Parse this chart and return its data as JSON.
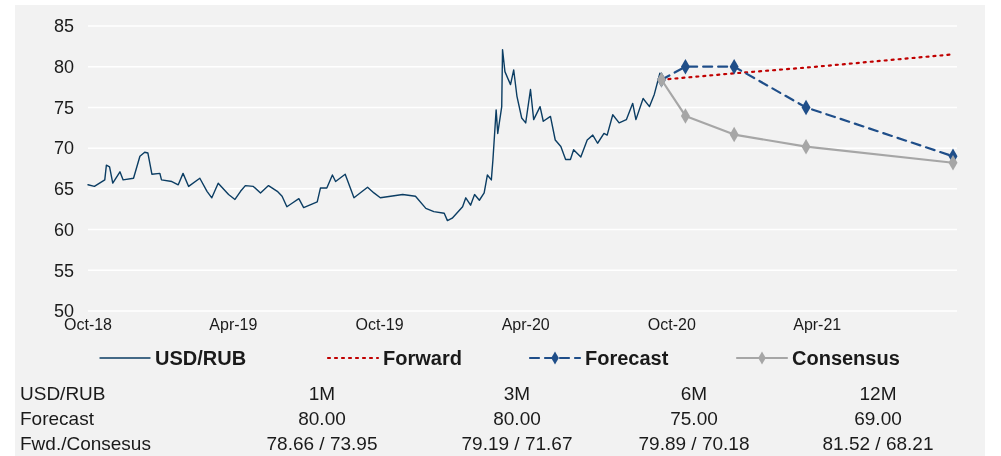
{
  "chart_data": {
    "type": "line",
    "xlim": [
      "2018-10-01",
      "2021-09-23"
    ],
    "xticks": [
      {
        "value": "2018-10-01",
        "label": "Oct-18"
      },
      {
        "value": "2019-04-01",
        "label": "Apr-19"
      },
      {
        "value": "2019-10-01",
        "label": "Oct-19"
      },
      {
        "value": "2020-04-01",
        "label": "Apr-20"
      },
      {
        "value": "2020-10-01",
        "label": "Oct-20"
      },
      {
        "value": "2021-04-01",
        "label": "Apr-21"
      }
    ],
    "ylim": [
      50,
      85
    ],
    "yticks": [
      50,
      55,
      60,
      65,
      70,
      75,
      80,
      85
    ],
    "grid": "y",
    "legend": "bottom",
    "series": [
      {
        "name": "USD/RUB",
        "color": "#0b3d63",
        "line_style": "solid",
        "marker": "none",
        "x": [
          "2018-10-01",
          "2018-10-09",
          "2018-10-22",
          "2018-10-24",
          "2018-10-28",
          "2018-11-01",
          "2018-11-10",
          "2018-11-14",
          "2018-11-27",
          "2018-12-05",
          "2018-12-11",
          "2018-12-15",
          "2018-12-20",
          "2018-12-30",
          "2019-01-01",
          "2019-01-14",
          "2019-01-22",
          "2019-01-28",
          "2019-02-04",
          "2019-02-18",
          "2019-02-27",
          "2019-03-05",
          "2019-03-13",
          "2019-03-26",
          "2019-04-03",
          "2019-04-10",
          "2019-04-16",
          "2019-04-26",
          "2019-05-05",
          "2019-05-15",
          "2019-05-26",
          "2019-06-01",
          "2019-06-07",
          "2019-06-13",
          "2019-06-22",
          "2019-06-28",
          "2019-07-15",
          "2019-07-19",
          "2019-07-27",
          "2019-08-03",
          "2019-08-07",
          "2019-08-19",
          "2019-08-30",
          "2019-09-16",
          "2019-09-24",
          "2019-10-02",
          "2019-10-30",
          "2019-11-15",
          "2019-11-28",
          "2019-12-08",
          "2019-12-21",
          "2019-12-25",
          "2019-12-31",
          "2020-01-13",
          "2020-01-17",
          "2020-01-23",
          "2020-01-28",
          "2020-02-03",
          "2020-02-09",
          "2020-02-13",
          "2020-02-18",
          "2020-02-20",
          "2020-02-24",
          "2020-02-26",
          "2020-03-02",
          "2020-03-03",
          "2020-03-06",
          "2020-03-13",
          "2020-03-17",
          "2020-03-21",
          "2020-03-27",
          "2020-04-01",
          "2020-04-07",
          "2020-04-11",
          "2020-04-19",
          "2020-04-23",
          "2020-05-02",
          "2020-05-08",
          "2020-05-15",
          "2020-05-21",
          "2020-05-27",
          "2020-05-31",
          "2020-06-09",
          "2020-06-17",
          "2020-06-24",
          "2020-06-30",
          "2020-07-08",
          "2020-07-12",
          "2020-07-19",
          "2020-07-27",
          "2020-08-05",
          "2020-08-13",
          "2020-08-17",
          "2020-08-26",
          "2020-09-03",
          "2020-09-09",
          "2020-09-16",
          "2020-09-18"
        ],
        "values": [
          65.5,
          65.3,
          66.1,
          67.9,
          67.7,
          65.7,
          67.1,
          66.1,
          66.3,
          69.0,
          69.5,
          69.4,
          66.8,
          66.9,
          66.1,
          65.9,
          65.5,
          66.9,
          65.3,
          66.3,
          64.7,
          63.9,
          65.7,
          64.3,
          63.7,
          64.7,
          65.4,
          65.3,
          64.5,
          65.4,
          64.7,
          64.1,
          62.8,
          63.2,
          63.8,
          62.7,
          63.4,
          65.1,
          65.1,
          66.7,
          65.9,
          66.8,
          63.9,
          65.2,
          64.5,
          63.9,
          64.3,
          64.1,
          62.6,
          62.2,
          62.0,
          61.1,
          61.4,
          62.8,
          63.9,
          63.0,
          64.3,
          63.6,
          64.5,
          66.7,
          66.1,
          68.6,
          74.7,
          71.8,
          75.1,
          82.1,
          79.4,
          77.8,
          79.6,
          76.4,
          73.7,
          73.1,
          77.2,
          73.5,
          75.1,
          73.3,
          73.9,
          71.0,
          70.2,
          68.6,
          68.6,
          69.8,
          68.9,
          71.0,
          71.6,
          70.6,
          71.8,
          71.6,
          74.1,
          73.1,
          73.5,
          75.5,
          73.5,
          76.1,
          75.1,
          76.6,
          79.2,
          78.4
        ]
      },
      {
        "name": "Forward",
        "color": "#c00000",
        "line_style": "dotted",
        "marker": "none",
        "x": [
          "2020-09-18",
          "2020-10-18",
          "2020-12-18",
          "2021-03-18",
          "2021-09-18"
        ],
        "values": [
          78.4,
          78.66,
          79.19,
          79.89,
          81.52
        ]
      },
      {
        "name": "Forecast",
        "color": "#1f4e89",
        "line_style": "dashed",
        "marker": "diamond",
        "x": [
          "2020-09-18",
          "2020-10-18",
          "2020-12-18",
          "2021-03-18",
          "2021-09-18"
        ],
        "values": [
          78.4,
          80,
          80,
          75,
          69
        ]
      },
      {
        "name": "Consensus",
        "color": "#a6a6a6",
        "line_style": "solid",
        "marker": "diamond",
        "x": [
          "2020-09-18",
          "2020-10-18",
          "2020-12-18",
          "2021-03-18",
          "2021-09-18"
        ],
        "values": [
          78.4,
          73.95,
          71.67,
          70.18,
          68.21
        ]
      }
    ],
    "annotations": [
      "USD/RUB",
      "1M",
      "3M",
      "6M",
      "12M",
      "Forecast",
      "80.00",
      "80.00",
      "75.00",
      "69.00",
      "Fwd./Consesus",
      "78.66 / 73.95",
      "79.19 / 71.67",
      "79.89 / 70.18",
      "81.52 / 68.21"
    ]
  }
}
